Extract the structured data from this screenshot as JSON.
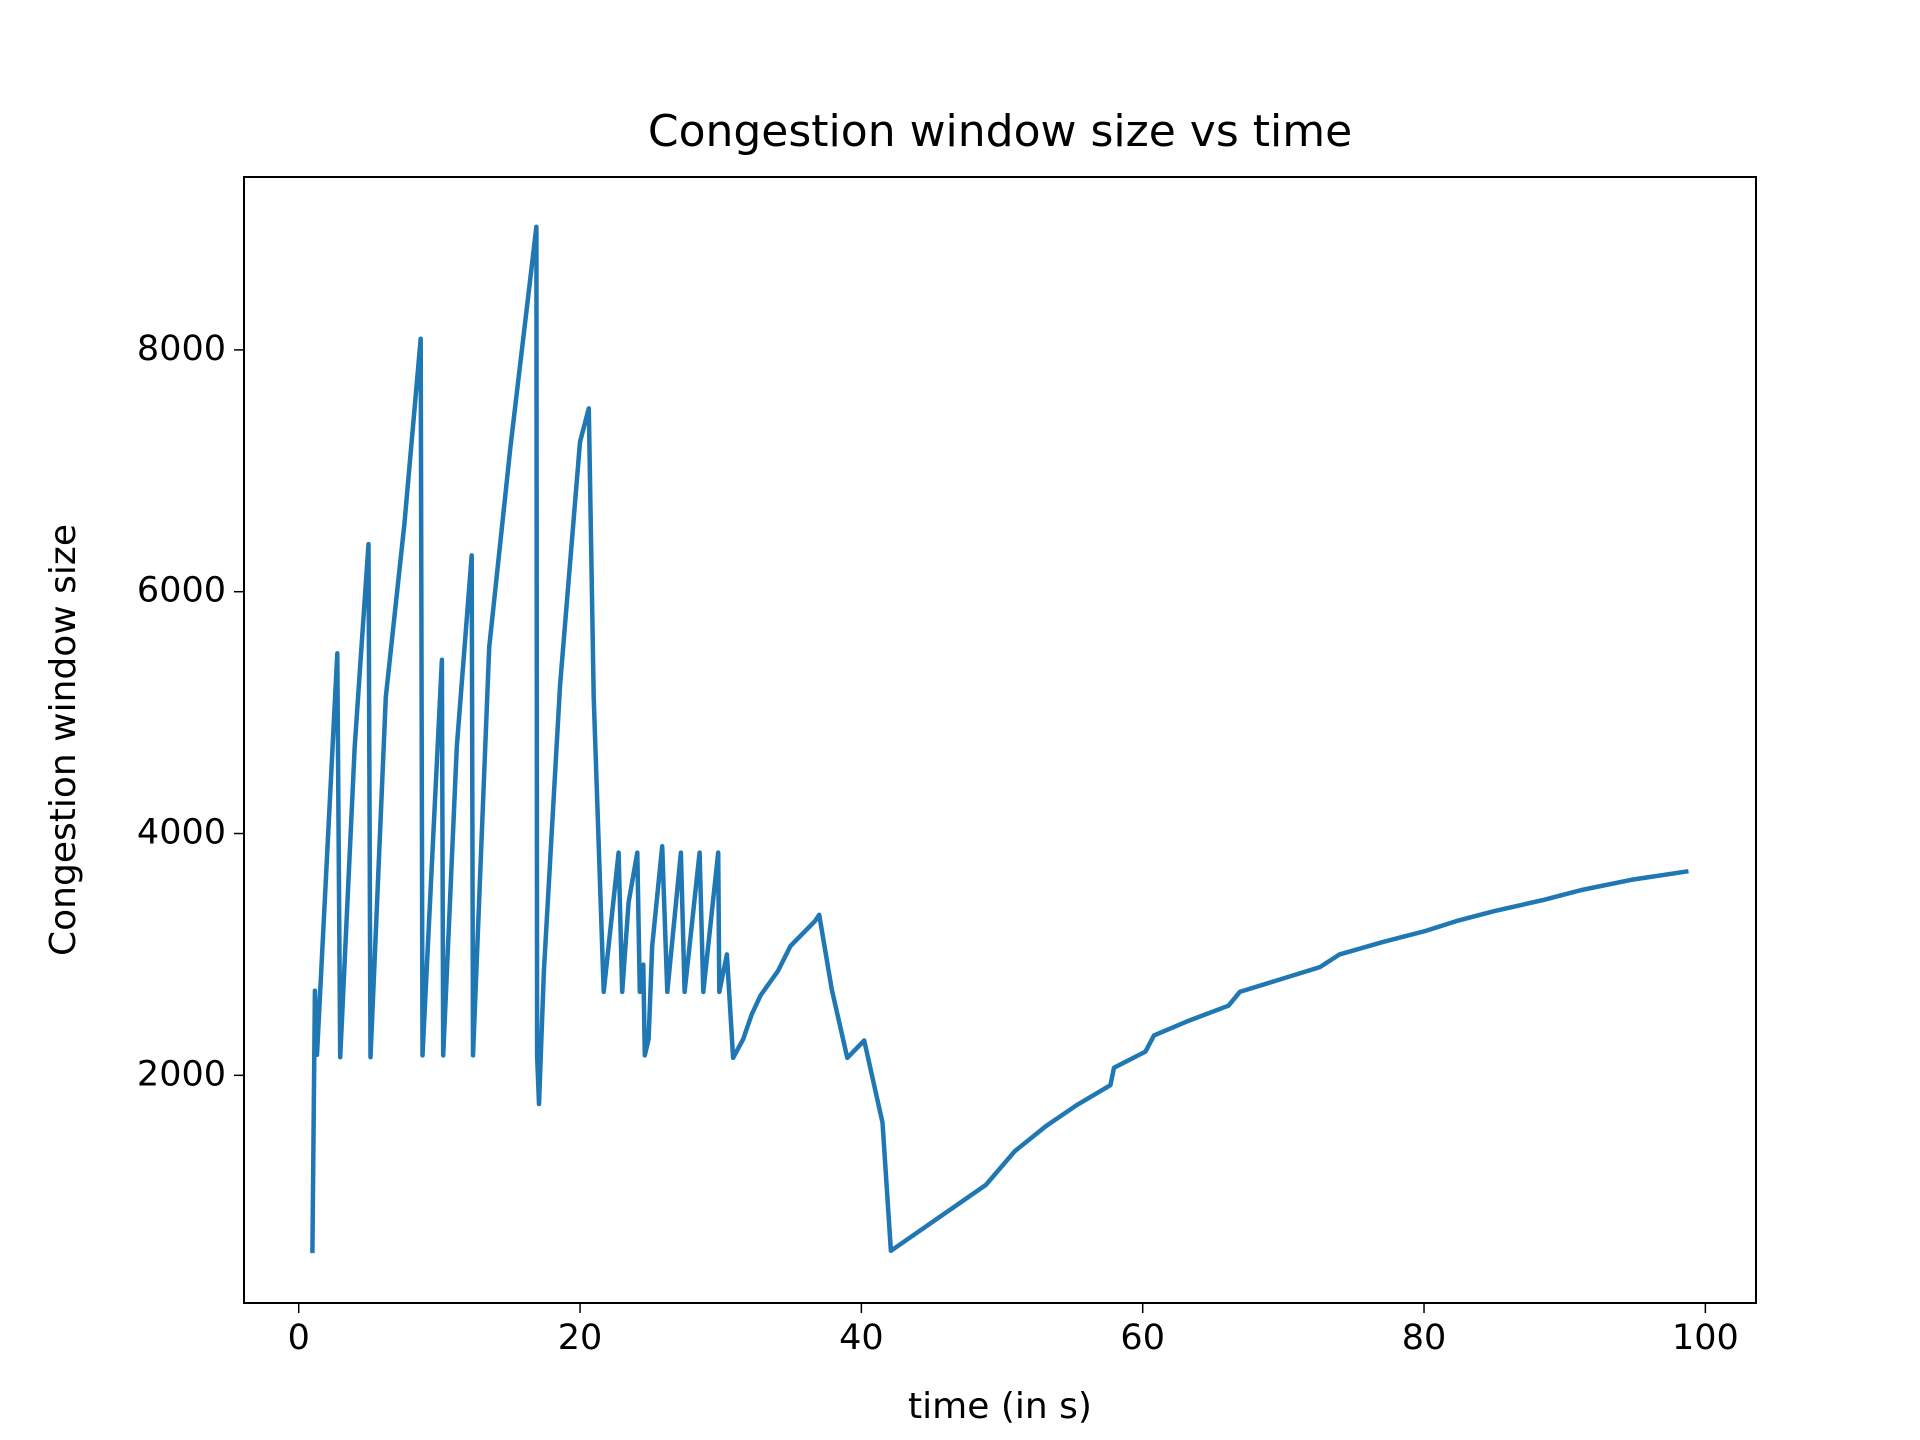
{
  "chart_data": {
    "type": "line",
    "title": "Congestion window size vs time",
    "x_label": "time (in s)",
    "y_label": "Congestion window size",
    "color": "#1f77b4",
    "x": [
      0.97,
      1.15,
      1.3,
      2.74,
      2.95,
      3.98,
      4.96,
      5.1,
      6.19,
      7.52,
      8.67,
      8.8,
      10.18,
      10.27,
      11.24,
      12.3,
      12.39,
      13.54,
      15.04,
      16.9,
      16.95,
      17.08,
      17.43,
      18.58,
      20.0,
      20.62,
      20.97,
      21.68,
      22.74,
      23.0,
      23.45,
      24.07,
      24.25,
      24.5,
      24.6,
      24.87,
      25.13,
      25.84,
      26.2,
      27.17,
      27.43,
      28.5,
      28.76,
      29.82,
      29.9,
      30.44,
      30.88,
      31.6,
      32.2,
      32.83,
      34.07,
      34.96,
      36.7,
      37.0,
      37.9,
      39.0,
      40.2,
      41.5,
      42.1,
      48.85,
      50.9,
      53.1,
      55.3,
      57.7,
      57.96,
      60.2,
      60.8,
      63.3,
      66.1,
      66.9,
      72.6,
      74.0,
      77.0,
      80.1,
      82.3,
      85.0,
      88.5,
      91.2,
      94.7,
      98.8
    ],
    "values": [
      530,
      2700,
      2170,
      5490,
      2150,
      4717,
      6394,
      2150,
      5128,
      6569,
      8092,
      2165,
      5437,
      2165,
      4717,
      6300,
      2165,
      5540,
      7187,
      9018,
      2165,
      1763,
      2864,
      5231,
      7238,
      7516,
      5128,
      2690,
      3842,
      2690,
      3430,
      3842,
      2690,
      2916,
      2165,
      2300,
      3070,
      3894,
      2690,
      3842,
      2690,
      3842,
      2690,
      3842,
      2690,
      3000,
      2144,
      2300,
      2504,
      2660,
      2864,
      3070,
      3276,
      3328,
      2710,
      2144,
      2288,
      1609,
      549,
      1094,
      1372,
      1578,
      1753,
      1918,
      2062,
      2196,
      2330,
      2453,
      2576,
      2690,
      2895,
      3000,
      3100,
      3194,
      3276,
      3358,
      3451,
      3533,
      3616,
      3688
    ],
    "xlim": [
      -3.89,
      103.6
    ],
    "xticks": [
      0,
      20,
      40,
      60,
      80,
      100
    ],
    "ylim": [
      117,
      9430
    ],
    "yticks": [
      2000,
      4000,
      6000,
      8000
    ]
  }
}
